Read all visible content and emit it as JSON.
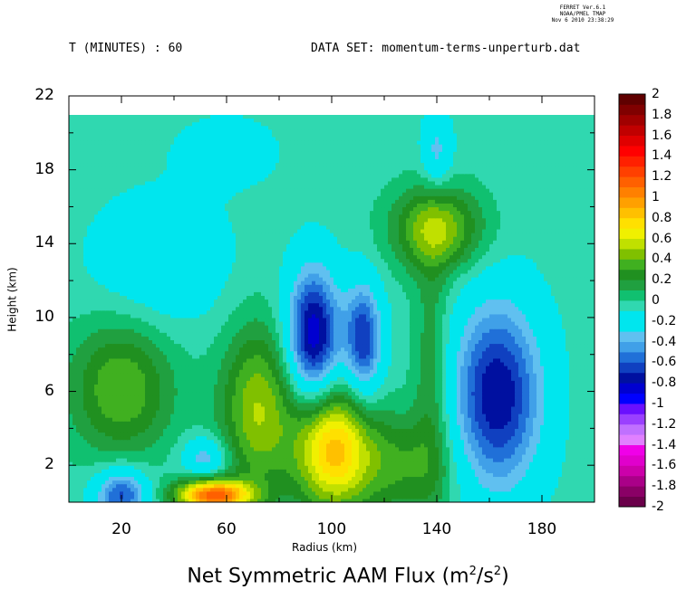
{
  "header": {
    "stamp_line1": "FERRET Ver.6.1",
    "stamp_line2": "NOAA/PMEL TMAP",
    "stamp_line3": "Nov  6 2010 23:38:29",
    "time_label": "T (MINUTES) : 60",
    "dataset_label": "DATA SET: momentum-terms-unperturb.dat"
  },
  "footer": {
    "title_main": "Net Symmetric AAM Flux (m",
    "title_exp1": "2",
    "title_mid": "/s",
    "title_exp2": "2",
    "title_end": ")"
  },
  "chart_data": {
    "type": "heatmap",
    "title": "Net Symmetric AAM Flux (m2/s2)",
    "xlabel": "Radius (km)",
    "ylabel": "Height (km)",
    "xlim": [
      0,
      200
    ],
    "ylim": [
      0,
      22
    ],
    "data_top": 21,
    "x_ticks": [
      20,
      60,
      100,
      140,
      180
    ],
    "y_ticks": [
      2,
      6,
      10,
      14,
      18,
      22
    ],
    "colorbar": {
      "min": -2,
      "max": 2,
      "step": 0.1,
      "labels": [
        "2",
        "1.8",
        "1.6",
        "1.4",
        "1.2",
        "1",
        "0.8",
        "0.6",
        "0.4",
        "0.2",
        "0",
        "-0.2",
        "-0.4",
        "-0.6",
        "-0.8",
        "-1",
        "-1.2",
        "-1.4",
        "-1.6",
        "-1.8",
        "-2"
      ],
      "colors": [
        "#6a004a",
        "#8a0066",
        "#aa0088",
        "#cc00aa",
        "#e000cc",
        "#f000e8",
        "#e080ff",
        "#c070ff",
        "#9a40ff",
        "#6a10ff",
        "#0000ff",
        "#0000d0",
        "#0010a0",
        "#1040c0",
        "#2070d8",
        "#40a0e8",
        "#60c0f0",
        "#00e6ee",
        "#00e6ee",
        "#30d8b0",
        "#10c070",
        "#20a040",
        "#209020",
        "#40b020",
        "#80c000",
        "#c0e000",
        "#f0f000",
        "#ffe000",
        "#ffc000",
        "#ffa000",
        "#ff8000",
        "#ff6000",
        "#ff4000",
        "#ff2000",
        "#ff0000",
        "#e00000",
        "#c00000",
        "#a00000",
        "#800000",
        "#600000"
      ]
    },
    "background_value": -0.05,
    "features": [
      {
        "x": 20,
        "y": 6.2,
        "amp": 0.45,
        "sx": 14,
        "sy": 2.6
      },
      {
        "x": 55,
        "y": 0.4,
        "amp": 1.2,
        "sx": 10,
        "sy": 0.6
      },
      {
        "x": 72,
        "y": 5.0,
        "amp": 0.55,
        "sx": 10,
        "sy": 3.2
      },
      {
        "x": 100,
        "y": 3.0,
        "amp": 0.85,
        "sx": 10,
        "sy": 2.4
      },
      {
        "x": 125,
        "y": 2.0,
        "amp": 0.35,
        "sx": 14,
        "sy": 2.0
      },
      {
        "x": 140,
        "y": 14.8,
        "amp": 0.55,
        "sx": 12,
        "sy": 1.6
      },
      {
        "x": 93,
        "y": 9.0,
        "amp": -0.85,
        "sx": 7,
        "sy": 2.6
      },
      {
        "x": 112,
        "y": 8.8,
        "amp": -0.65,
        "sx": 5,
        "sy": 2.2
      },
      {
        "x": 163,
        "y": 5.8,
        "amp": -0.75,
        "sx": 12,
        "sy": 3.6
      },
      {
        "x": 20,
        "y": 0.4,
        "amp": -0.6,
        "sx": 7,
        "sy": 1.0
      },
      {
        "x": 52,
        "y": 2.4,
        "amp": -0.35,
        "sx": 6,
        "sy": 0.8
      },
      {
        "x": 140,
        "y": 19.0,
        "amp": -0.3,
        "sx": 4,
        "sy": 1.4
      },
      {
        "x": 35,
        "y": 13.0,
        "amp": -0.22,
        "sx": 18,
        "sy": 2.5
      },
      {
        "x": 60,
        "y": 19.0,
        "amp": -0.2,
        "sx": 12,
        "sy": 1.2
      },
      {
        "x": 138,
        "y": 7.0,
        "amp": 0.25,
        "sx": 5,
        "sy": 5.0
      }
    ]
  }
}
